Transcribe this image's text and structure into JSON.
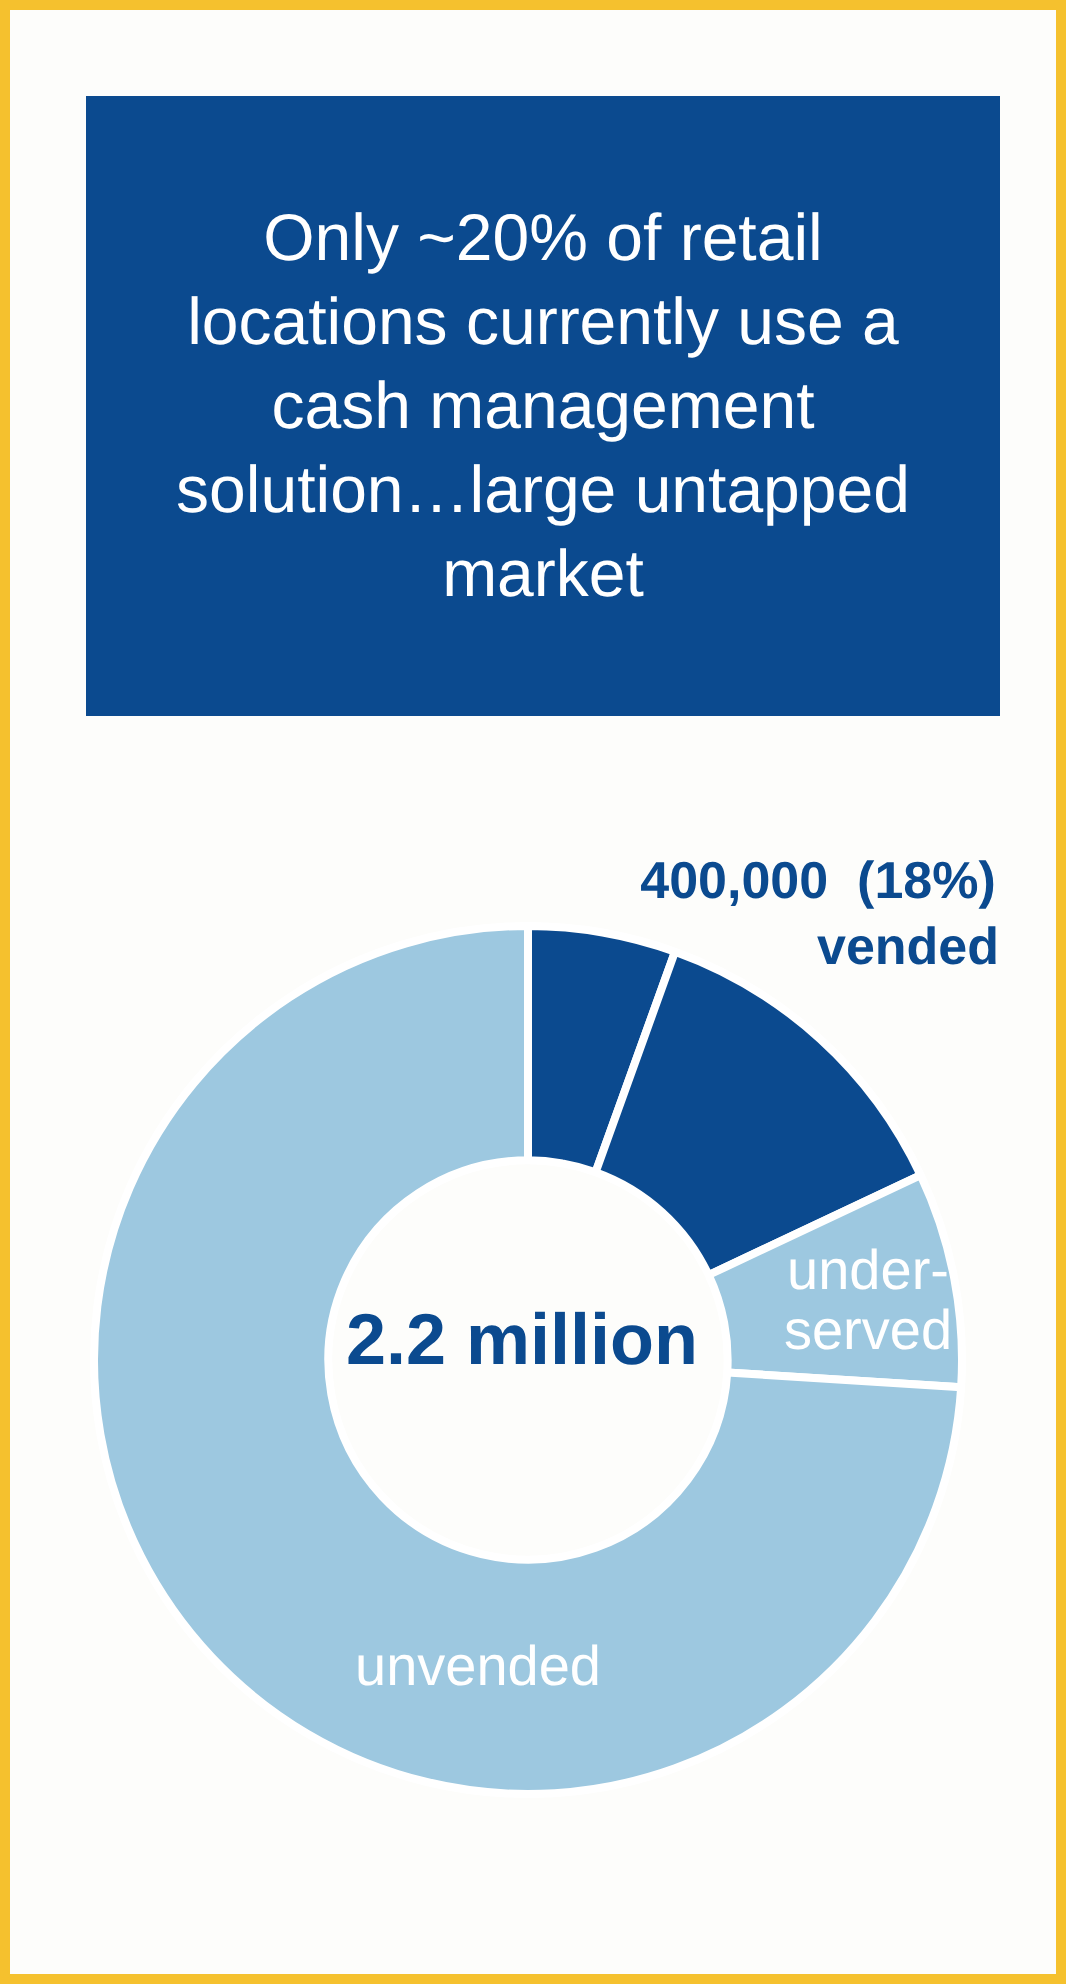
{
  "chart_data": {
    "type": "donut",
    "title": "Only ~20% of retail locations currently use a cash management solution…large untapped market",
    "categories": [
      null,
      "vended",
      "under-served",
      "unvended"
    ],
    "values": [
      5.5,
      12.5,
      8,
      74
    ],
    "colors": [
      "#0b4a8f",
      "#0b4a8f",
      "#9dc8e0",
      "#9dc8e0"
    ],
    "annotations": [
      "400,000  (18%)",
      "2.2 million"
    ],
    "legend": false
  }
}
